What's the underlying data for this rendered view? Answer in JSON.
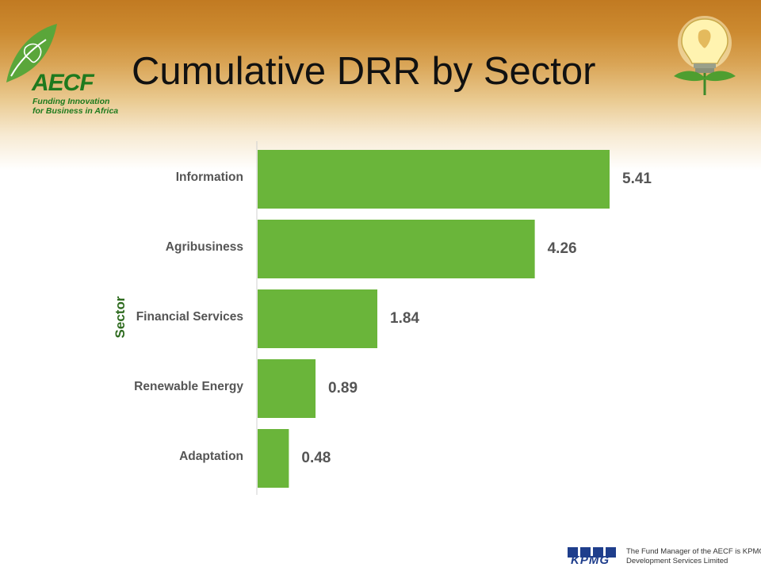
{
  "header": {
    "title": "Cumulative DRR by Sector",
    "logo_text": "AECF",
    "logo_tagline_1": "Funding Innovation",
    "logo_tagline_2": "for Business in Africa"
  },
  "chart_data": {
    "type": "bar",
    "orientation": "horizontal",
    "title": "",
    "ylabel": "Sector",
    "xlabel": "",
    "categories": [
      "Information",
      "Agribusiness",
      "Financial Services",
      "Renewable Energy",
      "Adaptation"
    ],
    "values": [
      5.41,
      4.26,
      1.84,
      0.89,
      0.48
    ],
    "value_labels": [
      "5.41",
      "4.26",
      "1.84",
      "0.89",
      "0.48"
    ],
    "xlim": [
      0,
      5.41
    ],
    "grid": false,
    "legend": "none",
    "bar_color": "#6ab53a",
    "label_color": "#555555",
    "axis_title_color": "#2e6b1f"
  },
  "footer": {
    "brand": "KPMG",
    "line1": "The Fund Manager of the AECF is KPMG",
    "line2": "Development Services Limited"
  },
  "colors": {
    "brand_green": "#1e7a1e",
    "kpmg_blue": "#1f3e8c"
  }
}
